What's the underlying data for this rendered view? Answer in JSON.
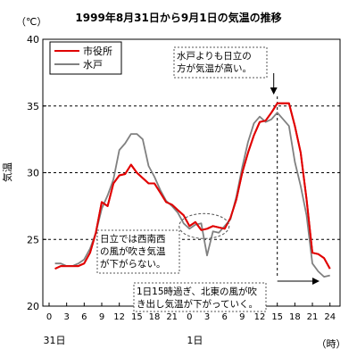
{
  "chart_data": {
    "type": "line",
    "title": "1999年8月31日から9月1日の気温の推移",
    "ylabel": "気温",
    "yunit": "（℃）",
    "xunit": "（時）",
    "ylim": [
      20,
      40
    ],
    "yticks": [
      20,
      25,
      30,
      35,
      40
    ],
    "dashed_gridlines": [
      25,
      30,
      35
    ],
    "xlim": [
      0,
      48
    ],
    "xticks": [
      {
        "x": 0,
        "label": "0"
      },
      {
        "x": 3,
        "label": "3"
      },
      {
        "x": 6,
        "label": "6"
      },
      {
        "x": 9,
        "label": "9"
      },
      {
        "x": 12,
        "label": "12"
      },
      {
        "x": 15,
        "label": "15"
      },
      {
        "x": 18,
        "label": "18"
      },
      {
        "x": 21,
        "label": "21"
      },
      {
        "x": 24,
        "label": "0"
      },
      {
        "x": 27,
        "label": "3"
      },
      {
        "x": 30,
        "label": "6"
      },
      {
        "x": 33,
        "label": "9"
      },
      {
        "x": 36,
        "label": "12"
      },
      {
        "x": 39,
        "label": "15"
      },
      {
        "x": 42,
        "label": "18"
      },
      {
        "x": 45,
        "label": "21"
      },
      {
        "x": 48,
        "label": "24"
      }
    ],
    "day_labels": [
      {
        "x": 0,
        "label": "31日"
      },
      {
        "x": 24,
        "label": "1日"
      }
    ],
    "legend_position": "top-left",
    "series": [
      {
        "name": "市役所",
        "color": "#e00000",
        "x": [
          1,
          2,
          3,
          4,
          5,
          6,
          7,
          8,
          9,
          10,
          11,
          12,
          13,
          14,
          15,
          16,
          17,
          18,
          19,
          20,
          21,
          22,
          23,
          24,
          25,
          26,
          27,
          28,
          29,
          30,
          31,
          32,
          33,
          34,
          35,
          36,
          37,
          38,
          39,
          40,
          41,
          42,
          43,
          44,
          45,
          46,
          47,
          48
        ],
        "y": [
          22.8,
          23.0,
          23.0,
          23.0,
          23.0,
          23.2,
          24.0,
          25.5,
          27.8,
          27.5,
          29.2,
          29.8,
          29.9,
          30.6,
          30.0,
          29.6,
          29.2,
          29.2,
          28.5,
          27.8,
          27.6,
          27.2,
          26.8,
          26.0,
          26.3,
          25.7,
          25.8,
          26.0,
          25.9,
          25.8,
          26.6,
          28.0,
          30.0,
          31.5,
          32.8,
          33.8,
          33.9,
          34.5,
          35.2,
          35.2,
          35.2,
          33.5,
          31.5,
          28.0,
          24.0,
          23.9,
          23.6,
          22.8
        ]
      },
      {
        "name": "水戸",
        "color": "#808080",
        "x": [
          1,
          2,
          3,
          4,
          5,
          6,
          7,
          8,
          9,
          10,
          11,
          12,
          13,
          14,
          15,
          16,
          17,
          18,
          19,
          20,
          21,
          22,
          23,
          24,
          25,
          26,
          27,
          28,
          29,
          30,
          31,
          32,
          33,
          34,
          35,
          36,
          37,
          38,
          39,
          40,
          41,
          42,
          43,
          44,
          45,
          46,
          47,
          48
        ],
        "y": [
          23.2,
          23.2,
          23.0,
          23.0,
          23.2,
          23.5,
          24.3,
          25.5,
          27.3,
          28.3,
          29.5,
          31.7,
          32.2,
          32.9,
          32.9,
          32.5,
          30.5,
          29.7,
          28.7,
          27.9,
          27.5,
          27.0,
          26.2,
          25.8,
          26.1,
          26.2,
          23.8,
          25.6,
          25.5,
          26.0,
          26.5,
          28.2,
          30.4,
          32.3,
          33.7,
          34.2,
          33.8,
          34.0,
          34.5,
          34.0,
          33.5,
          30.8,
          29.0,
          26.8,
          23.2,
          22.6,
          22.2,
          22.3
        ]
      }
    ],
    "annotations": [
      {
        "text": [
          "水戸よりも日立の",
          "方が気温が高い。"
        ],
        "target_x": 39
      },
      {
        "text": [
          "日立では西南西",
          "の風が吹き気温",
          "が下がらない。"
        ],
        "target_x": 26.5
      },
      {
        "text": [
          "1日15時過ぎ、北東の風が吹",
          "き出し気温が下がっていく。"
        ],
        "target_x": 39
      }
    ],
    "event_line_x": 39,
    "highlight_ellipse": {
      "x_center": 26.5,
      "y_center": 26.0
    }
  }
}
